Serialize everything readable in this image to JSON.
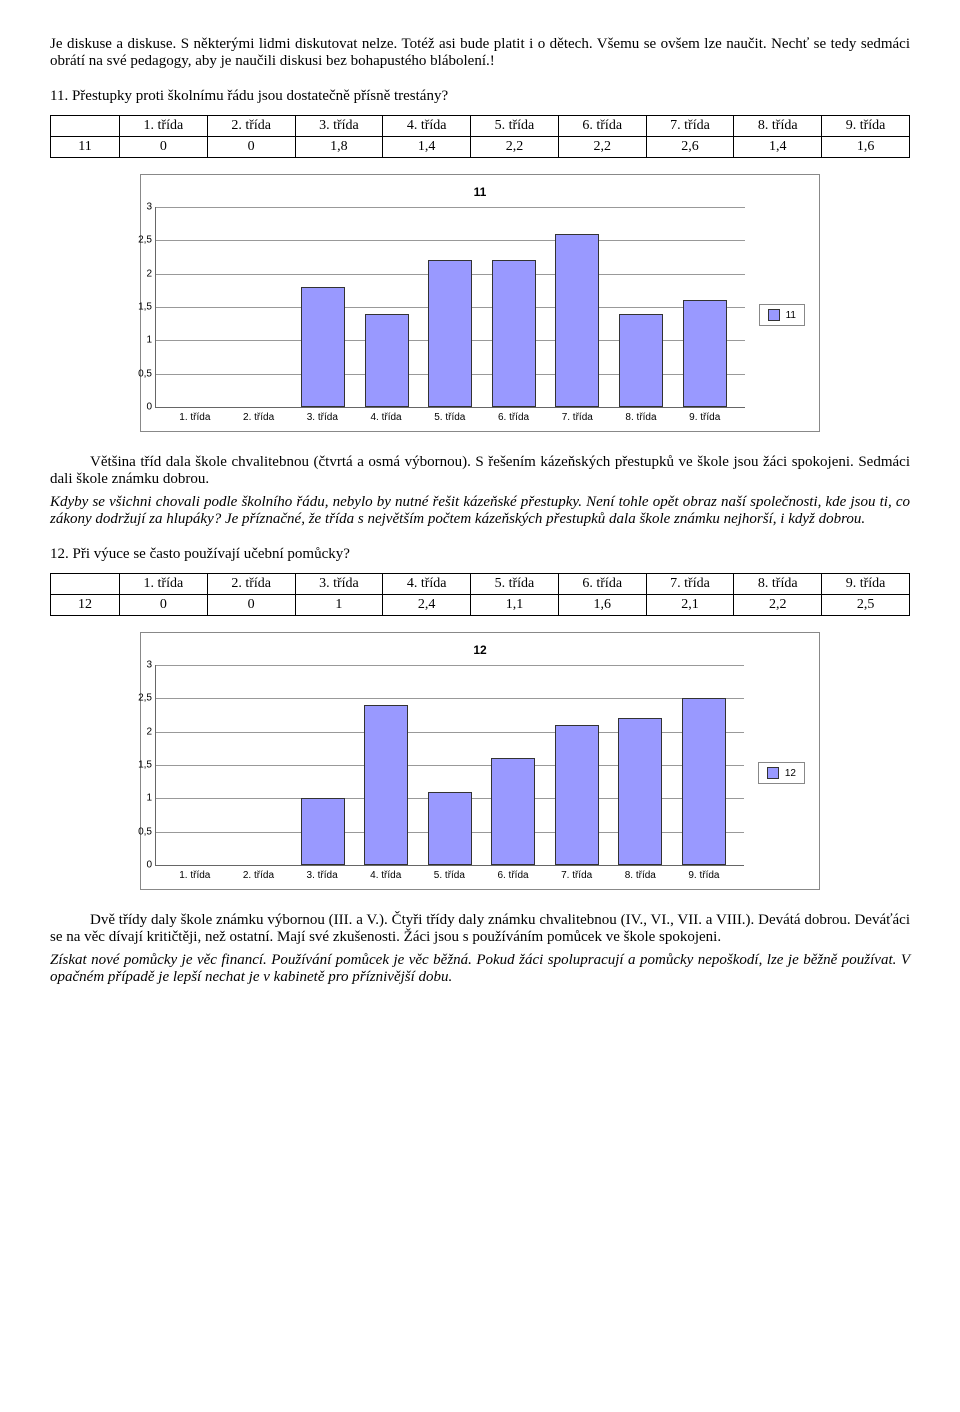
{
  "para1": "Je diskuse a diskuse. S některými lidmi diskutovat nelze. Totéž asi bude platit i o dětech. Všemu se ovšem lze naučit. Nechť se tedy sedmáci obrátí na své pedagogy, aby je naučili diskusi bez bohapustého blábolení.!",
  "q11": "11. Přestupky proti školnímu řádu jsou dostatečně přísně trestány?",
  "table_headers": [
    "1. třída",
    "2. třída",
    "3. třída",
    "4. třída",
    "5. třída",
    "6. třída",
    "7. třída",
    "8. třída",
    "9. třída"
  ],
  "t11_row_label": "11",
  "t11_values": [
    "0",
    "0",
    "1,8",
    "1,4",
    "2,2",
    "2,2",
    "2,6",
    "1,4",
    "1,6"
  ],
  "chart11": {
    "title": "11",
    "bar_color": "#9999ff",
    "grid_color": "#999999",
    "categories": [
      "1. třída",
      "2. třída",
      "3. třída",
      "4. třída",
      "5. třída",
      "6. třída",
      "7. třída",
      "8. třída",
      "9. třída"
    ],
    "values": [
      0,
      0,
      1.8,
      1.4,
      2.2,
      2.2,
      2.6,
      1.4,
      1.6
    ],
    "ymax": 3,
    "ytick_step": 0.5,
    "legend_label": "11"
  },
  "para2": "Většina tříd dala škole chvalitebnou (čtvrtá a osmá výbornou). S řešením kázeňských přestupků ve škole jsou žáci spokojeni. Sedmáci dali škole známku dobrou.",
  "para3": "Kdyby se všichni chovali podle školního řádu, nebylo by nutné řešit kázeňské přestupky. Není tohle opět obraz naší společnosti, kde jsou ti, co zákony dodržují za hlupáky? Je příznačné, že třída s největším počtem kázeňských přestupků dala škole známku nejhorší, i když dobrou.",
  "q12": "12. Při výuce se často používají učební pomůcky?",
  "t12_row_label": "12",
  "t12_values": [
    "0",
    "0",
    "1",
    "2,4",
    "1,1",
    "1,6",
    "2,1",
    "2,2",
    "2,5"
  ],
  "chart12": {
    "title": "12",
    "bar_color": "#9999ff",
    "grid_color": "#999999",
    "categories": [
      "1. třída",
      "2. třída",
      "3. třída",
      "4. třída",
      "5. třída",
      "6. třída",
      "7. třída",
      "8. třída",
      "9. třída"
    ],
    "values": [
      0,
      0,
      1,
      2.4,
      1.1,
      1.6,
      2.1,
      2.2,
      2.5
    ],
    "ymax": 3,
    "ytick_step": 0.5,
    "legend_label": "12"
  },
  "para4": "Dvě třídy daly škole známku výbornou (III. a V.). Čtyři třídy daly známku chvalitebnou (IV., VI., VII. a VIII.). Devátá dobrou. Deváťáci se na věc dívají kritičtěji, než ostatní. Mají své zkušenosti. Žáci jsou s používáním pomůcek ve škole spokojeni.",
  "para5": "Získat nové pomůcky je věc financí. Používání pomůcek je věc běžná. Pokud žáci spolupracují a pomůcky nepoškodí, lze je běžně používat. V opačném případě je lepší nechat je v kabinetě pro příznivější dobu."
}
